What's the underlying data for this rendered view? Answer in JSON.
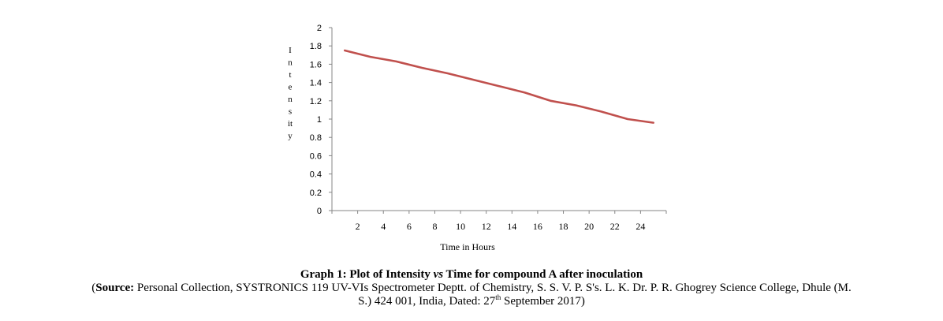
{
  "chart_data": {
    "type": "line",
    "x": [
      1,
      3,
      5,
      7,
      9,
      11,
      13,
      15,
      17,
      19,
      21,
      23,
      25
    ],
    "series": [
      {
        "values": [
          1.75,
          1.68,
          1.63,
          1.56,
          1.5,
          1.43,
          1.36,
          1.29,
          1.2,
          1.15,
          1.08,
          1.0,
          0.96
        ]
      }
    ],
    "xticks": [
      "2",
      "4",
      "6",
      "8",
      "10",
      "12",
      "14",
      "16",
      "18",
      "20",
      "22",
      "24"
    ],
    "yticks": [
      "0",
      "0.2",
      "0.4",
      "0.6",
      "0.8",
      "1",
      "1.2",
      "1.4",
      "1.6",
      "1.8",
      "2"
    ],
    "ylabel": "Intensity",
    "ylabel_glyphs": [
      "I",
      "n",
      "t",
      "e",
      "n",
      "s",
      "it",
      "y"
    ],
    "xlabel": "Time in Hours",
    "xlim": [
      0,
      26
    ],
    "ylim": [
      0,
      2
    ],
    "line_color": "#c0504d",
    "grid": false
  },
  "caption": {
    "title_pre": "Graph 1: Plot of Intensity ",
    "title_vs": "vs",
    "title_post": " Time for compound A after inoculation",
    "source_open": "(",
    "source_label": "Source:",
    "source_text_1": " Personal Collection, SYSTRONICS 119 UV-VIs Spectrometer Deptt. of Chemistry, S. S. V. P. S's. L. K. Dr. P. R. Ghogrey Science College, Dhule (M.",
    "source_text_2": "S.) 424 001, India, Dated: 27",
    "source_sup": "th",
    "source_text_3": " September 2017)"
  }
}
